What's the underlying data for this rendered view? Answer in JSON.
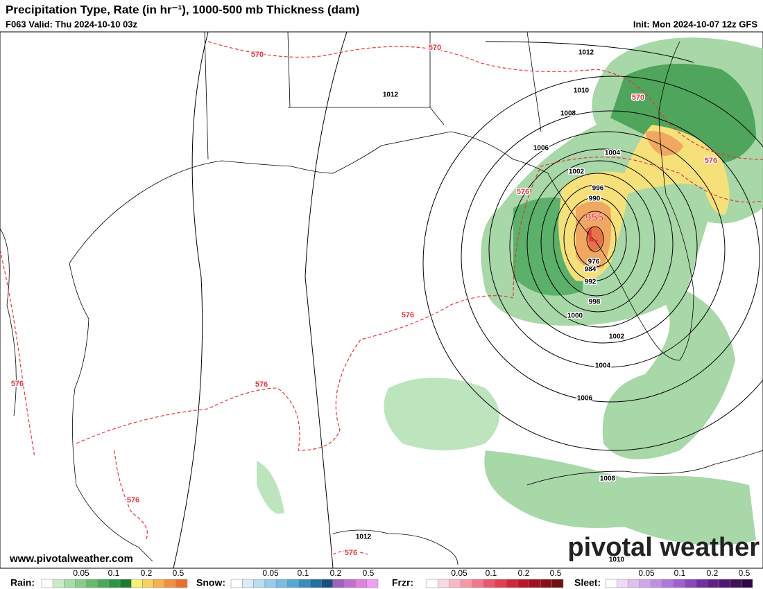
{
  "header": {
    "title": "Precipitation Type, Rate (in hr⁻¹), 1000-500 mb Thickness (dam)",
    "valid": "F063 Valid: Thu 2024-10-10 03z",
    "init": "Init: Mon 2024-10-07 12z GFS"
  },
  "map": {
    "low": {
      "symbol": "L",
      "pressure": "955"
    },
    "isobar_labels": [
      "1012",
      "1012",
      "1010",
      "1008",
      "1006",
      "1004",
      "1002",
      "996",
      "990",
      "976",
      "984",
      "992",
      "998",
      "1000",
      "1002",
      "1004",
      "1006",
      "1008",
      "1012",
      "1010"
    ],
    "thickness_labels": [
      "570",
      "570",
      "570",
      "576",
      "576",
      "576",
      "576",
      "576",
      "576",
      "576"
    ]
  },
  "footer": {
    "website": "www.pivotalweather.com",
    "logo": "pivotal weather"
  },
  "legend": [
    {
      "name": "Rain:",
      "ticks": [
        "0.05",
        "0.1",
        "0.2",
        "0.5"
      ]
    },
    {
      "name": "Snow:",
      "ticks": [
        "0.05",
        "0.1",
        "0.2",
        "0.5"
      ]
    },
    {
      "name": "Frzr:",
      "ticks": [
        "0.05",
        "0.1",
        "0.2",
        "0.5"
      ]
    },
    {
      "name": "Sleet:",
      "ticks": [
        "0.05",
        "0.1",
        "0.2",
        "0.5"
      ]
    }
  ]
}
